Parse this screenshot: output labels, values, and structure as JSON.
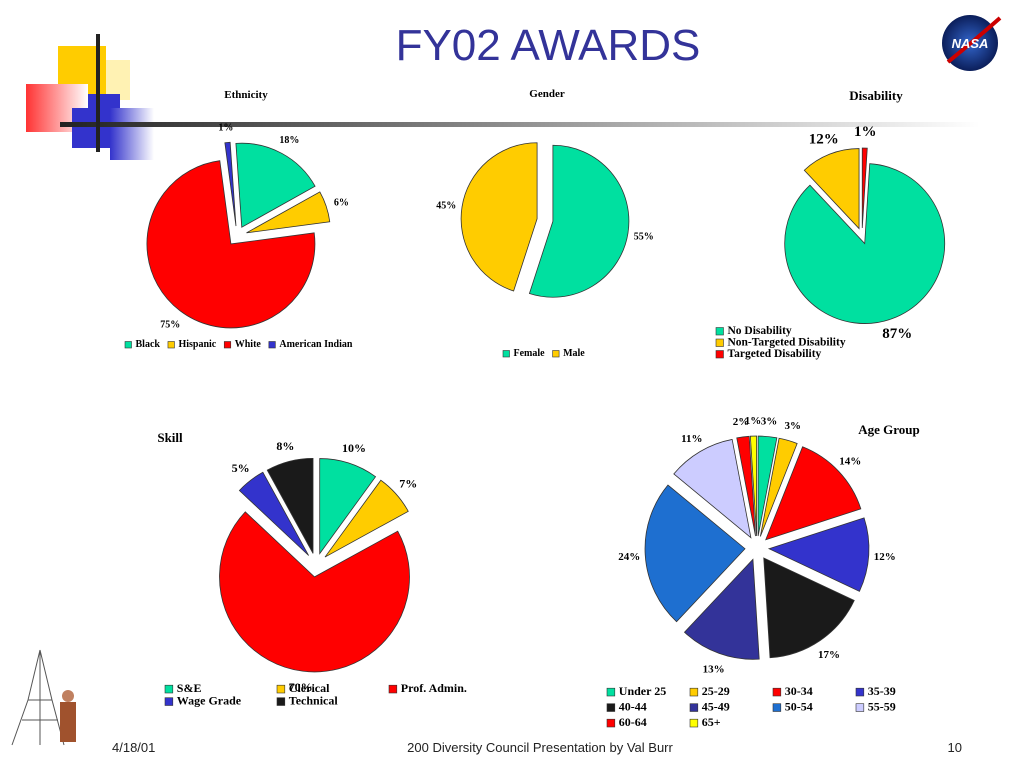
{
  "title": "FY02 AWARDS",
  "logo_text": "NASA",
  "footer": {
    "date": "4/18/01",
    "center": "200 Diversity Council Presentation by Val Burr",
    "page": "10"
  },
  "chart_data": [
    {
      "type": "pie",
      "title": "Ethnicity",
      "categories": [
        "Black",
        "Hispanic",
        "White",
        "American Indian"
      ],
      "values": [
        18,
        6,
        75,
        1
      ],
      "value_labels": [
        "18%",
        "6%",
        "75%",
        "1%"
      ],
      "colors": [
        "#00e0a0",
        "#ffcc00",
        "#ff0000",
        "#3333cc"
      ]
    },
    {
      "type": "pie",
      "title": "Gender",
      "categories": [
        "Female",
        "Male"
      ],
      "values": [
        55,
        45
      ],
      "value_labels": [
        "55%",
        "45%"
      ],
      "colors": [
        "#00e0a0",
        "#ffcc00"
      ]
    },
    {
      "type": "pie",
      "title": "Disability",
      "categories": [
        "No Disability",
        "Non-Targeted Disability",
        "Targeted Disability"
      ],
      "values": [
        87,
        12,
        1
      ],
      "value_labels": [
        "87%",
        "12%",
        "1%"
      ],
      "colors": [
        "#00e0a0",
        "#ffcc00",
        "#ff0000"
      ]
    },
    {
      "type": "pie",
      "title": "Skill",
      "categories": [
        "S&E",
        "Clerical",
        "Prof. Admin.",
        "Wage Grade",
        "Technical"
      ],
      "values": [
        10,
        7,
        70,
        5,
        8
      ],
      "value_labels": [
        "10%",
        "7%",
        "70%",
        "5%",
        "8%"
      ],
      "colors": [
        "#00e0a0",
        "#ffcc00",
        "#ff0000",
        "#3333cc",
        "#1a1a1a"
      ]
    },
    {
      "type": "pie",
      "title": "Age Group",
      "categories": [
        "Under 25",
        "25-29",
        "30-34",
        "35-39",
        "40-44",
        "45-49",
        "50-54",
        "55-59",
        "60-64",
        "65+"
      ],
      "values": [
        3,
        3,
        14,
        12,
        17,
        13,
        24,
        11,
        2,
        1
      ],
      "value_labels": [
        "3%",
        "3%",
        "14%",
        "12%",
        "17%",
        "13%",
        "24%",
        "11%",
        "2%",
        "1%"
      ],
      "colors": [
        "#00e0a0",
        "#ffcc00",
        "#ff0000",
        "#3333cc",
        "#1a1a1a",
        "#333399",
        "#1e6fd0",
        "#ccccff",
        "#ff0000",
        "#ffff00"
      ]
    }
  ]
}
